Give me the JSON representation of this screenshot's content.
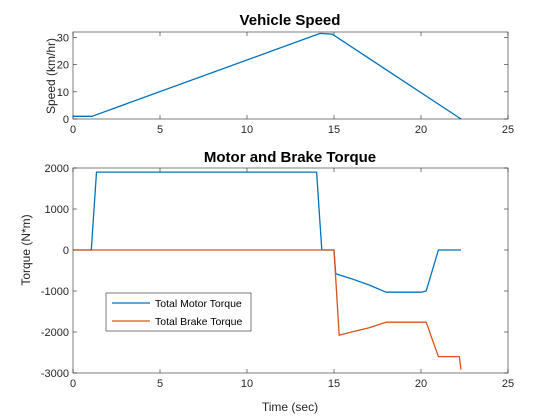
{
  "chart_data": [
    {
      "type": "line",
      "title": "Vehicle Speed",
      "xlabel": "",
      "ylabel": "Speed (km/hr)",
      "xlim": [
        0,
        25
      ],
      "ylim": [
        0,
        32
      ],
      "xticks": [
        0,
        5,
        10,
        15,
        20,
        25
      ],
      "yticks": [
        0,
        10,
        20,
        30
      ],
      "grid": false,
      "colors": [
        "#0072BD"
      ],
      "series": [
        {
          "x": [
            0,
            1.1,
            14.2,
            14.9,
            22.3
          ],
          "y": [
            1,
            1,
            31.5,
            31.2,
            0
          ]
        }
      ]
    },
    {
      "type": "line",
      "title": "Motor and Brake Torque",
      "xlabel": "Time (sec)",
      "ylabel": "Torque (N*m)",
      "xlim": [
        0,
        25
      ],
      "ylim": [
        -3000,
        2000
      ],
      "xticks": [
        0,
        5,
        10,
        15,
        20,
        25
      ],
      "yticks": [
        -3000,
        -2000,
        -1000,
        0,
        1000,
        2000
      ],
      "grid": false,
      "legend_position": "lower-left",
      "series": [
        {
          "name": "Total Motor Torque",
          "color": "#0072BD",
          "x": [
            0,
            1.05,
            1.35,
            14.0,
            14.3,
            15.0,
            15.1,
            16.0,
            17.0,
            18.0,
            20.0,
            20.3,
            21.0,
            22.3
          ],
          "y": [
            0,
            0,
            1900,
            1900,
            0,
            0,
            -580,
            -700,
            -850,
            -1030,
            -1030,
            -1000,
            0,
            0
          ]
        },
        {
          "name": "Total Brake Torque",
          "color": "#D95319",
          "x": [
            0,
            15.0,
            15.3,
            16.0,
            17.0,
            18.0,
            20.3,
            21.0,
            22.2,
            22.3
          ],
          "y": [
            0,
            0,
            -2080,
            -2000,
            -1900,
            -1760,
            -1760,
            -2600,
            -2600,
            -2920
          ]
        }
      ]
    }
  ]
}
